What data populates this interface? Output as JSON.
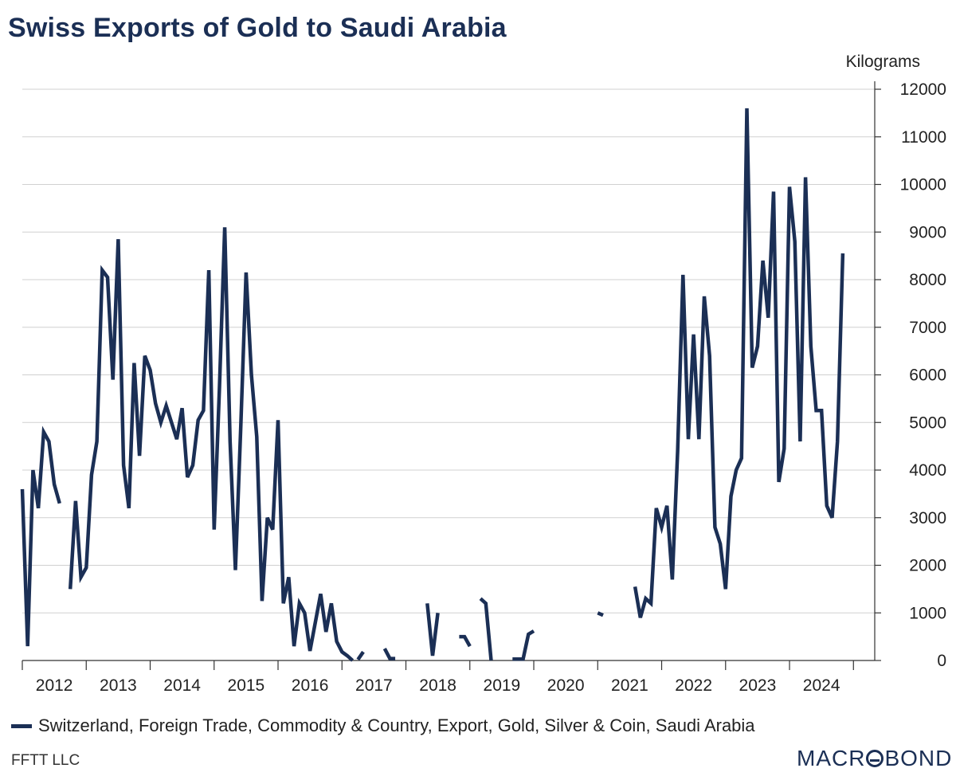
{
  "colors": {
    "title": "#1b2f55",
    "series": "#1b2f55",
    "grid": "#d0d0d0",
    "axis": "#333333"
  },
  "branding": {
    "source": "FFTT LLC",
    "logo_text_left": "MACR",
    "logo_text_right": "BOND"
  },
  "chart_data": {
    "type": "line",
    "title": "Swiss Exports of Gold to Saudi Arabia",
    "ylabel": "Kilograms",
    "xlabel": "",
    "ylim": [
      0,
      12000
    ],
    "yticks": [
      0,
      1000,
      2000,
      3000,
      4000,
      5000,
      6000,
      7000,
      8000,
      9000,
      10000,
      11000,
      12000
    ],
    "xlim": [
      "2012-01",
      "2025-04"
    ],
    "xticks": [
      "2012",
      "2013",
      "2014",
      "2015",
      "2016",
      "2017",
      "2018",
      "2019",
      "2020",
      "2021",
      "2022",
      "2023",
      "2024"
    ],
    "y_axis_side": "right",
    "grid": "horizontal",
    "legend_position": "bottom",
    "series": [
      {
        "name": "Switzerland, Foreign Trade, Commodity & Country, Export, Gold, Silver & Coin, Saudi Arabia",
        "segments": [
          [
            [
              "2012-01",
              3600
            ],
            [
              "2012-02",
              300
            ],
            [
              "2012-03",
              4000
            ],
            [
              "2012-04",
              3200
            ],
            [
              "2012-05",
              4800
            ],
            [
              "2012-06",
              4600
            ],
            [
              "2012-07",
              3700
            ],
            [
              "2012-08",
              3300
            ]
          ],
          [
            [
              "2012-10",
              1500
            ],
            [
              "2012-11",
              3350
            ],
            [
              "2012-12",
              1750
            ],
            [
              "2013-01",
              1950
            ],
            [
              "2013-02",
              3900
            ],
            [
              "2013-03",
              4600
            ],
            [
              "2013-04",
              8200
            ],
            [
              "2013-05",
              8050
            ],
            [
              "2013-06",
              5900
            ],
            [
              "2013-07",
              8850
            ],
            [
              "2013-08",
              4100
            ],
            [
              "2013-09",
              3200
            ],
            [
              "2013-10",
              6250
            ],
            [
              "2013-11",
              4300
            ],
            [
              "2013-12",
              6400
            ],
            [
              "2014-01",
              6100
            ],
            [
              "2014-02",
              5400
            ],
            [
              "2014-03",
              5000
            ],
            [
              "2014-04",
              5350
            ],
            [
              "2014-05",
              5000
            ],
            [
              "2014-06",
              4650
            ],
            [
              "2014-07",
              5300
            ],
            [
              "2014-08",
              3850
            ],
            [
              "2014-09",
              4100
            ],
            [
              "2014-10",
              5050
            ],
            [
              "2014-11",
              5250
            ],
            [
              "2014-12",
              8200
            ],
            [
              "2015-01",
              2750
            ],
            [
              "2015-02",
              5700
            ],
            [
              "2015-03",
              9100
            ],
            [
              "2015-04",
              4600
            ],
            [
              "2015-05",
              1900
            ],
            [
              "2015-06",
              4900
            ],
            [
              "2015-07",
              8150
            ],
            [
              "2015-08",
              6000
            ],
            [
              "2015-09",
              4700
            ],
            [
              "2015-10",
              1250
            ],
            [
              "2015-11",
              3000
            ],
            [
              "2015-12",
              2750
            ],
            [
              "2016-01",
              5050
            ],
            [
              "2016-02",
              1200
            ],
            [
              "2016-03",
              1750
            ],
            [
              "2016-04",
              300
            ],
            [
              "2016-05",
              1200
            ],
            [
              "2016-06",
              1000
            ],
            [
              "2016-07",
              200
            ],
            [
              "2016-08",
              800
            ],
            [
              "2016-09",
              1400
            ],
            [
              "2016-10",
              600
            ],
            [
              "2016-11",
              1200
            ],
            [
              "2016-12",
              400
            ],
            [
              "2017-01",
              180
            ],
            [
              "2017-02",
              100
            ],
            [
              "2017-03",
              0
            ]
          ],
          [
            [
              "2017-04",
              20
            ],
            [
              "2017-05",
              180
            ]
          ],
          [
            [
              "2017-09",
              250
            ],
            [
              "2017-10",
              40
            ],
            [
              "2017-11",
              40
            ]
          ],
          [
            [
              "2018-05",
              1200
            ],
            [
              "2018-06",
              100
            ],
            [
              "2018-07",
              1000
            ]
          ],
          [
            [
              "2018-11",
              500
            ],
            [
              "2018-12",
              500
            ],
            [
              "2019-01",
              300
            ]
          ],
          [
            [
              "2019-03",
              1300
            ],
            [
              "2019-04",
              1200
            ],
            [
              "2019-05",
              0
            ]
          ],
          [
            [
              "2019-09",
              30
            ],
            [
              "2019-10",
              30
            ],
            [
              "2019-11",
              30
            ],
            [
              "2019-12",
              550
            ],
            [
              "2020-01",
              620
            ]
          ],
          [
            [
              "2021-01",
              1000
            ],
            [
              "2021-02",
              950
            ]
          ],
          [
            [
              "2021-08",
              1550
            ],
            [
              "2021-09",
              900
            ],
            [
              "2021-10",
              1300
            ],
            [
              "2021-11",
              1200
            ],
            [
              "2021-12",
              3200
            ],
            [
              "2022-01",
              2800
            ],
            [
              "2022-02",
              3250
            ],
            [
              "2022-03",
              1700
            ],
            [
              "2022-04",
              4400
            ],
            [
              "2022-05",
              8100
            ],
            [
              "2022-06",
              4650
            ],
            [
              "2022-07",
              6850
            ],
            [
              "2022-08",
              4650
            ],
            [
              "2022-09",
              7650
            ],
            [
              "2022-10",
              6400
            ],
            [
              "2022-11",
              2800
            ],
            [
              "2022-12",
              2450
            ],
            [
              "2023-01",
              1500
            ],
            [
              "2023-02",
              3450
            ],
            [
              "2023-03",
              4000
            ],
            [
              "2023-04",
              4250
            ],
            [
              "2023-05",
              11600
            ],
            [
              "2023-06",
              6150
            ],
            [
              "2023-07",
              6600
            ],
            [
              "2023-08",
              8400
            ],
            [
              "2023-09",
              7200
            ],
            [
              "2023-10",
              9850
            ],
            [
              "2023-11",
              3750
            ],
            [
              "2023-12",
              4450
            ],
            [
              "2024-01",
              9950
            ],
            [
              "2024-02",
              8800
            ],
            [
              "2024-03",
              4600
            ],
            [
              "2024-04",
              10150
            ],
            [
              "2024-05",
              6600
            ],
            [
              "2024-06",
              5250
            ],
            [
              "2024-07",
              5250
            ],
            [
              "2024-08",
              3250
            ],
            [
              "2024-09",
              3000
            ],
            [
              "2024-10",
              4600
            ],
            [
              "2024-11",
              8550
            ]
          ]
        ]
      }
    ]
  }
}
